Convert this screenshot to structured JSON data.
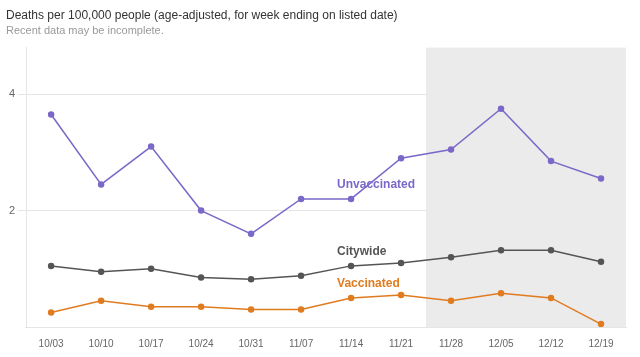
{
  "chart_data": {
    "type": "line",
    "title": "Deaths per 100,000 people (age-adjusted, for week ending on listed date)",
    "subtitle": "Recent data may be incomplete.",
    "categories": [
      "10/03",
      "10/10",
      "10/17",
      "10/24",
      "10/31",
      "11/07",
      "11/14",
      "11/21",
      "11/28",
      "12/05",
      "12/12",
      "12/19"
    ],
    "series": [
      {
        "name": "Unvaccinated",
        "color": "#7b68c8",
        "values": [
          3.65,
          2.45,
          3.1,
          2.0,
          1.6,
          2.2,
          2.2,
          2.9,
          3.05,
          3.75,
          2.85,
          2.55
        ]
      },
      {
        "name": "Citywide",
        "color": "#555555",
        "values": [
          1.05,
          0.95,
          1.0,
          0.85,
          0.82,
          0.88,
          1.05,
          1.1,
          1.2,
          1.32,
          1.32,
          1.12
        ]
      },
      {
        "name": "Vaccinated",
        "color": "#e07b20",
        "values": [
          0.25,
          0.45,
          0.35,
          0.35,
          0.3,
          0.3,
          0.5,
          0.55,
          0.45,
          0.58,
          0.5,
          0.05
        ]
      }
    ],
    "shaded_region": {
      "from": "11/28",
      "to": "12/19",
      "color": "#ebebeb"
    },
    "ylim": [
      0,
      4.8
    ],
    "yticks": [
      2,
      4
    ],
    "grid": "y",
    "marker": "circle"
  }
}
